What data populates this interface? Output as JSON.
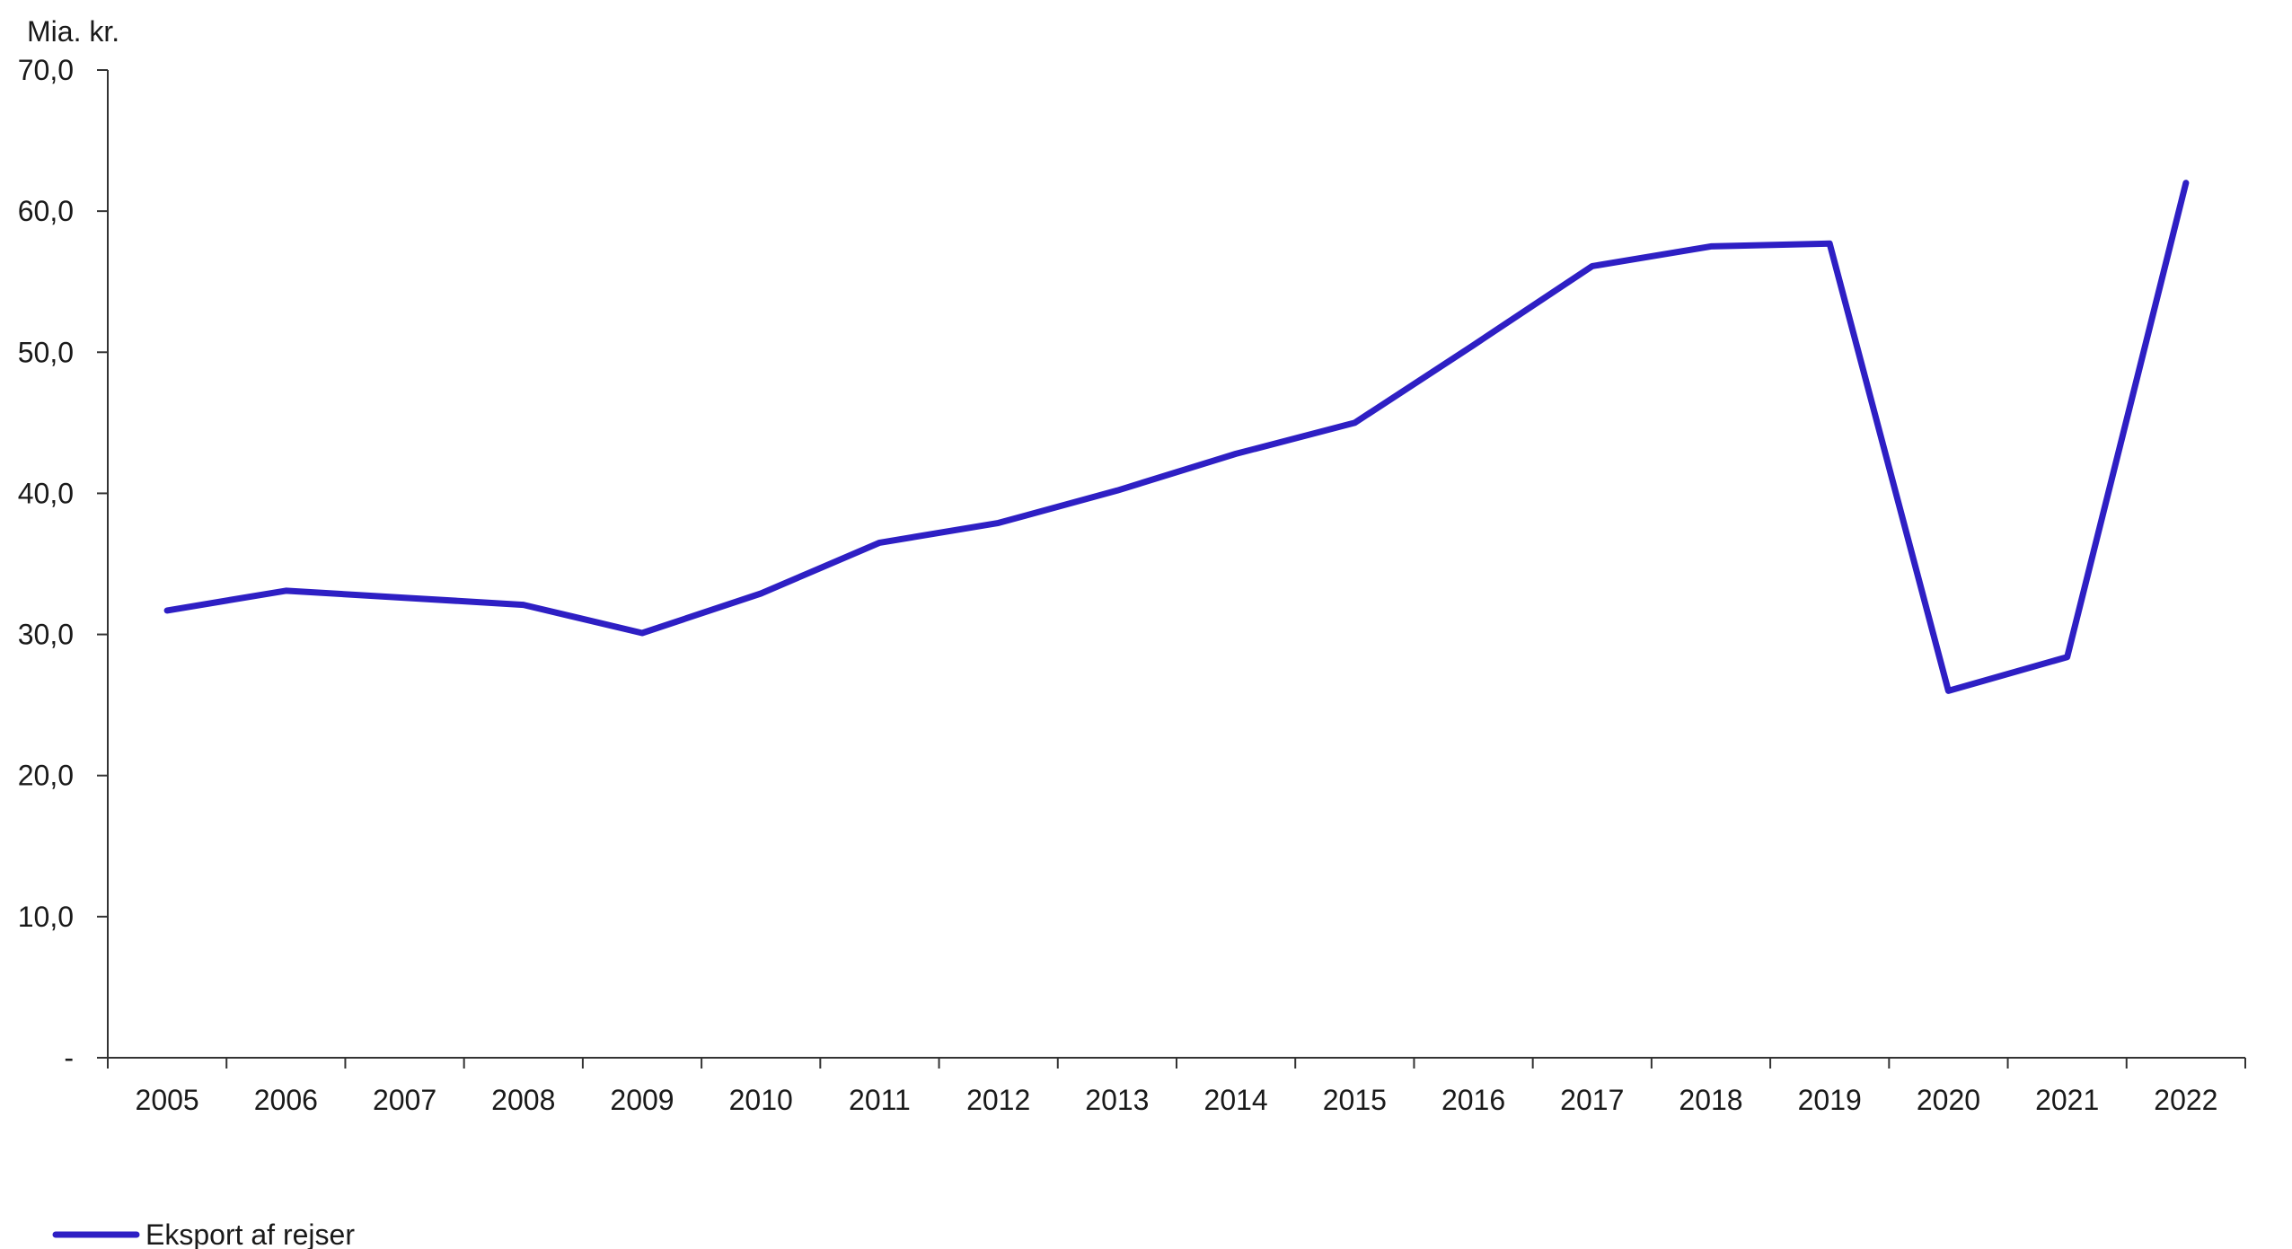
{
  "chart_data": {
    "type": "line",
    "unit_label": "Mia. kr.",
    "x": [
      "2005",
      "2006",
      "2007",
      "2008",
      "2009",
      "2010",
      "2011",
      "2012",
      "2013",
      "2014",
      "2015",
      "2016",
      "2017",
      "2018",
      "2019",
      "2020",
      "2021",
      "2022"
    ],
    "series": [
      {
        "name": "Eksport af rejser",
        "color": "#2e1fc4",
        "values": [
          31.7,
          33.1,
          32.6,
          32.1,
          30.1,
          32.9,
          36.5,
          37.9,
          40.2,
          42.8,
          45.0,
          50.5,
          56.1,
          57.5,
          57.7,
          26.0,
          28.4,
          62.0
        ]
      }
    ],
    "ylim": [
      0,
      70
    ],
    "yticks": [
      0,
      10,
      20,
      30,
      40,
      50,
      60,
      70
    ],
    "ytick_labels": [
      "-",
      "10,0",
      "20,0",
      "30,0",
      "40,0",
      "50,0",
      "60,0",
      "70,0"
    ],
    "legend_position": "bottom-left",
    "grid": false
  },
  "colors": {
    "axis": "#333333",
    "text": "#1a1a1a",
    "series": "#2e1fc4"
  }
}
